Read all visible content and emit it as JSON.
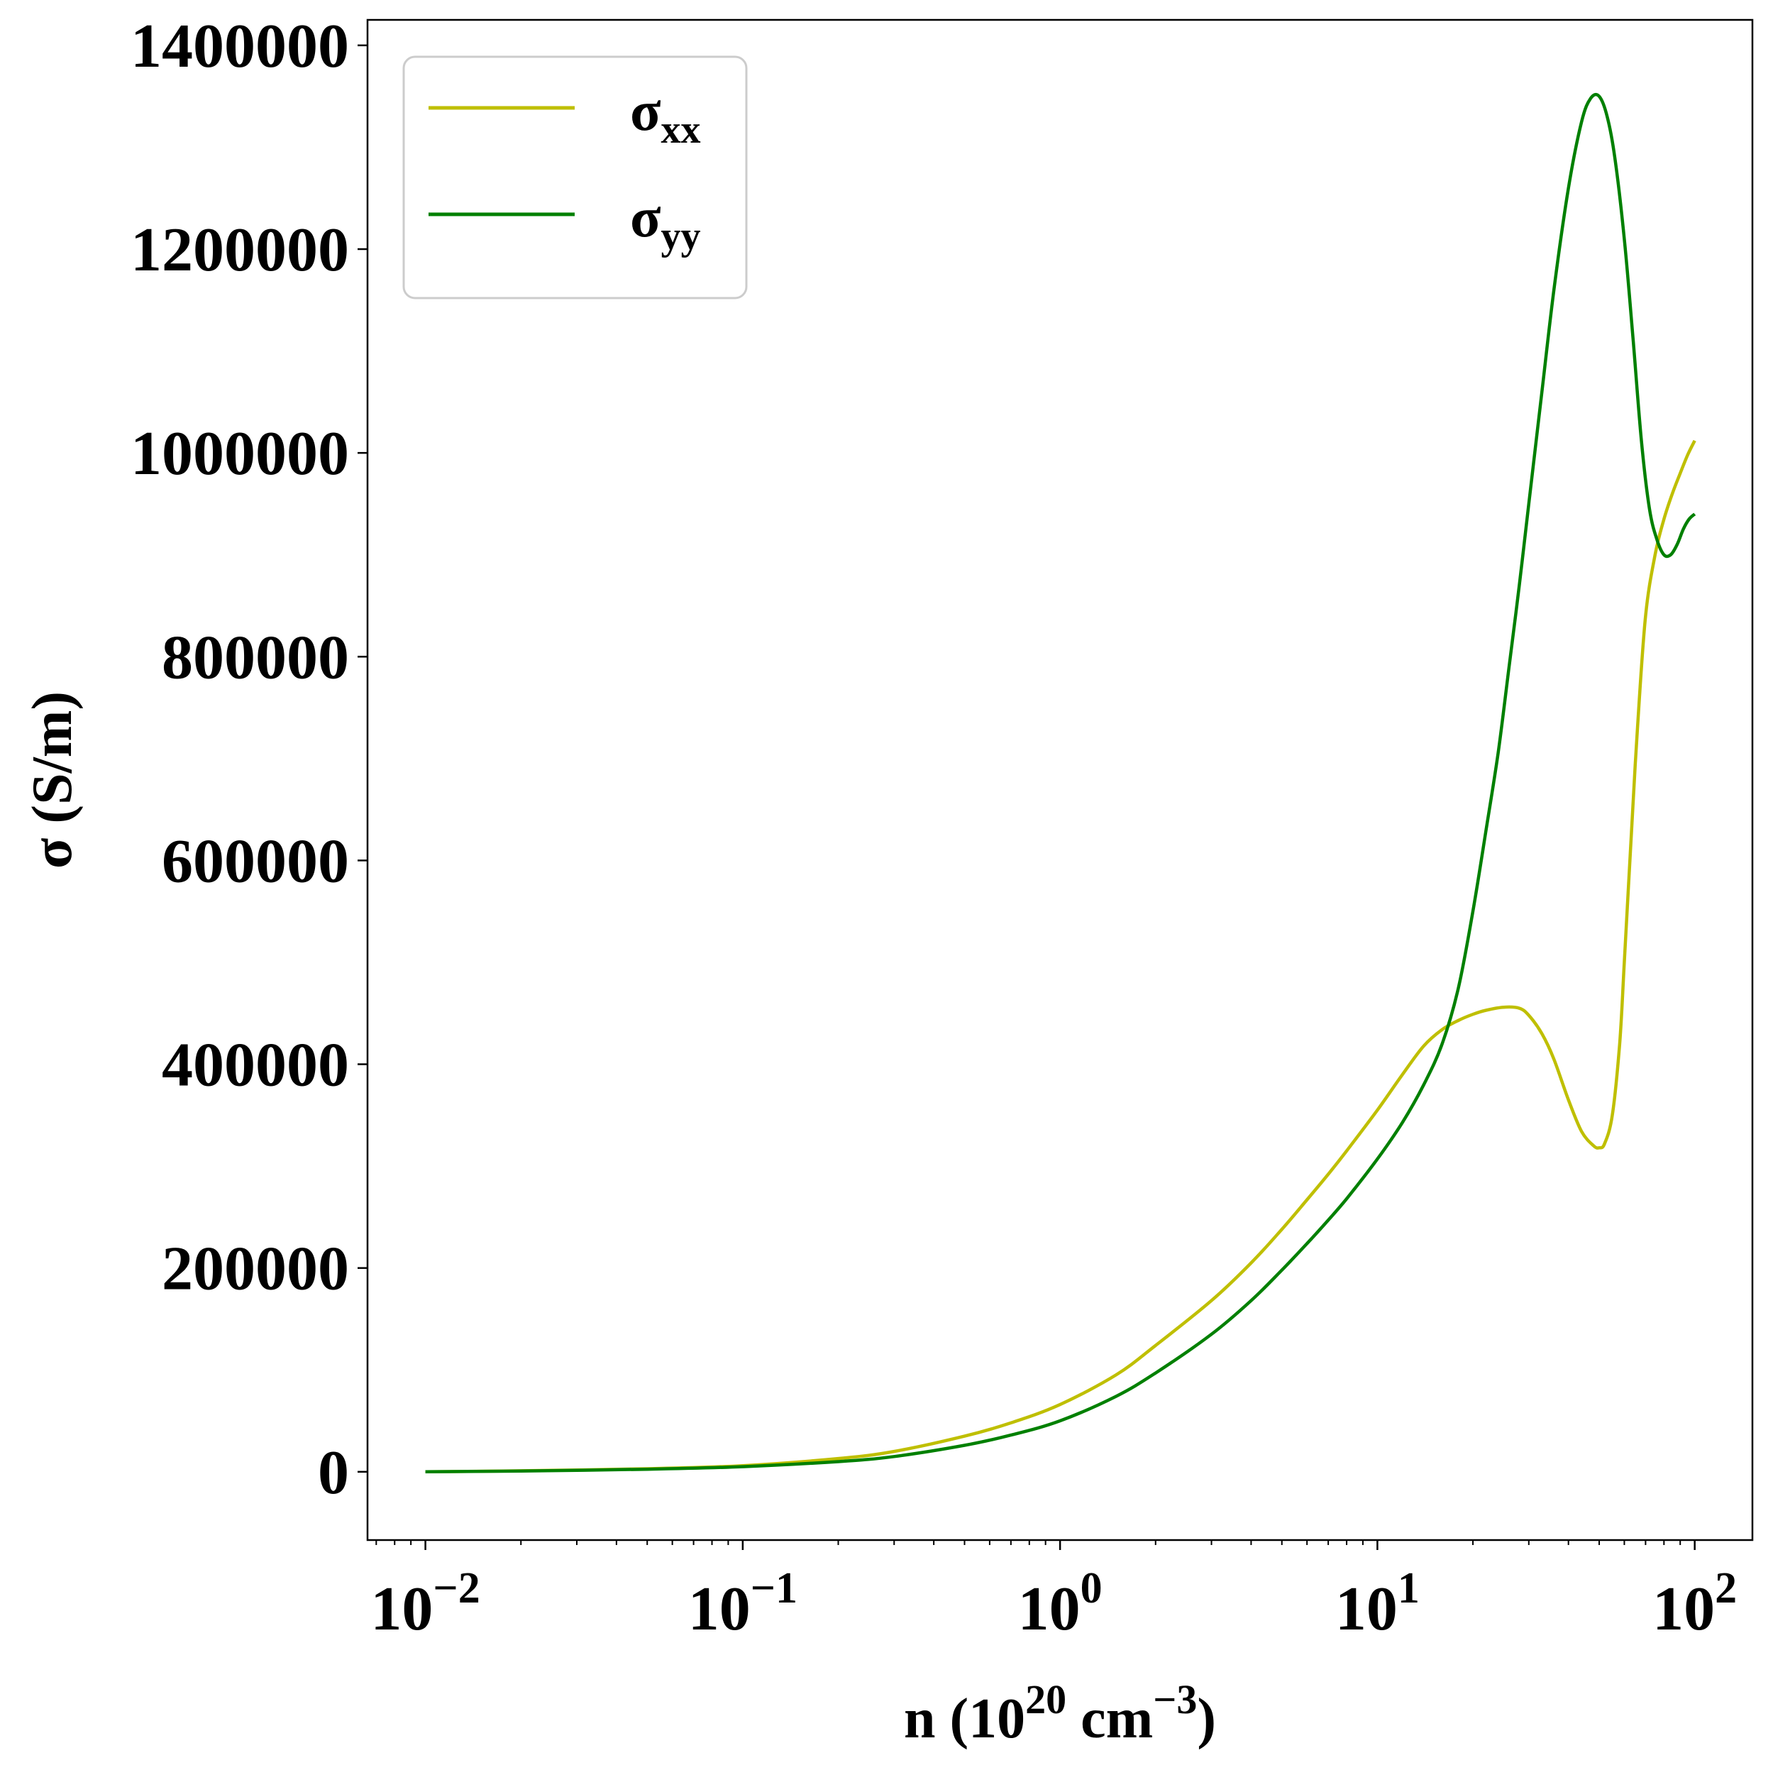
{
  "chart_data": {
    "type": "line",
    "title": "",
    "xlabel": {
      "base": "n (10",
      "exp1": "20",
      "mid": " cm",
      "exp2": "−3",
      "tail": ")"
    },
    "ylabel": "σ (S/m)",
    "xscale": "log",
    "xlim": [
      0.00657,
      152
    ],
    "ylim": [
      -67000,
      1425000
    ],
    "grid": false,
    "legend_position": "top-left",
    "x_ticks": [
      {
        "value": 0.01,
        "base": "10",
        "exp": "−2"
      },
      {
        "value": 0.1,
        "base": "10",
        "exp": "−1"
      },
      {
        "value": 1,
        "base": "10",
        "exp": "0"
      },
      {
        "value": 10,
        "base": "10",
        "exp": "1"
      },
      {
        "value": 100,
        "base": "10",
        "exp": "2"
      }
    ],
    "y_ticks": [
      {
        "value": 0,
        "label": "0"
      },
      {
        "value": 200000,
        "label": "200000"
      },
      {
        "value": 400000,
        "label": "400000"
      },
      {
        "value": 600000,
        "label": "600000"
      },
      {
        "value": 800000,
        "label": "800000"
      },
      {
        "value": 1000000,
        "label": "1000000"
      },
      {
        "value": 1200000,
        "label": "1200000"
      },
      {
        "value": 1400000,
        "label": "1400000"
      }
    ],
    "series": [
      {
        "name": "σxx",
        "name_main": "σ",
        "name_sub": "xx",
        "color": "#bfbf00",
        "x": [
          0.01,
          0.02,
          0.05,
          0.1,
          0.2,
          0.3,
          0.5,
          0.7,
          1,
          1.5,
          2,
          3,
          4,
          5,
          6,
          7,
          8,
          10,
          12,
          14,
          16,
          18,
          20,
          22,
          25,
          28,
          30,
          33,
          36,
          40,
          44,
          48,
          50,
          52,
          55,
          58,
          60,
          63,
          66,
          70,
          75,
          80,
          85,
          90,
          95,
          100
        ],
        "y": [
          0,
          1000,
          3000,
          6000,
          13000,
          20000,
          35000,
          48000,
          66000,
          95000,
          124000,
          168000,
          205000,
          238000,
          267000,
          292000,
          315000,
          355000,
          390000,
          418000,
          434000,
          443000,
          449000,
          453000,
          456000,
          455000,
          448000,
          430000,
          405000,
          365000,
          334000,
          320000,
          318000,
          322000,
          350000,
          420000,
          500000,
          620000,
          730000,
          840000,
          900000,
          935000,
          960000,
          980000,
          998000,
          1012000
        ]
      },
      {
        "name": "σyy",
        "name_main": "σ",
        "name_sub": "yy",
        "color": "#008000",
        "x": [
          0.01,
          0.02,
          0.05,
          0.1,
          0.2,
          0.3,
          0.5,
          0.7,
          1,
          1.5,
          2,
          3,
          4,
          5,
          6,
          7,
          8,
          10,
          12,
          14,
          16,
          18,
          20,
          22,
          24,
          26,
          28,
          30,
          33,
          36,
          40,
          44,
          47,
          50,
          53,
          56,
          60,
          64,
          68,
          72,
          76,
          80,
          84,
          88,
          92,
          96,
          100
        ],
        "y": [
          0,
          800,
          2500,
          5000,
          10000,
          15000,
          26000,
          36000,
          50000,
          74000,
          97000,
          135000,
          168000,
          198000,
          224000,
          247000,
          268000,
          307000,
          343000,
          380000,
          420000,
          475000,
          550000,
          630000,
          705000,
          790000,
          870000,
          950000,
          1060000,
          1160000,
          1260000,
          1325000,
          1348000,
          1350000,
          1330000,
          1290000,
          1210000,
          1110000,
          1010000,
          945000,
          915000,
          900000,
          900000,
          910000,
          925000,
          935000,
          940000
        ]
      }
    ]
  }
}
